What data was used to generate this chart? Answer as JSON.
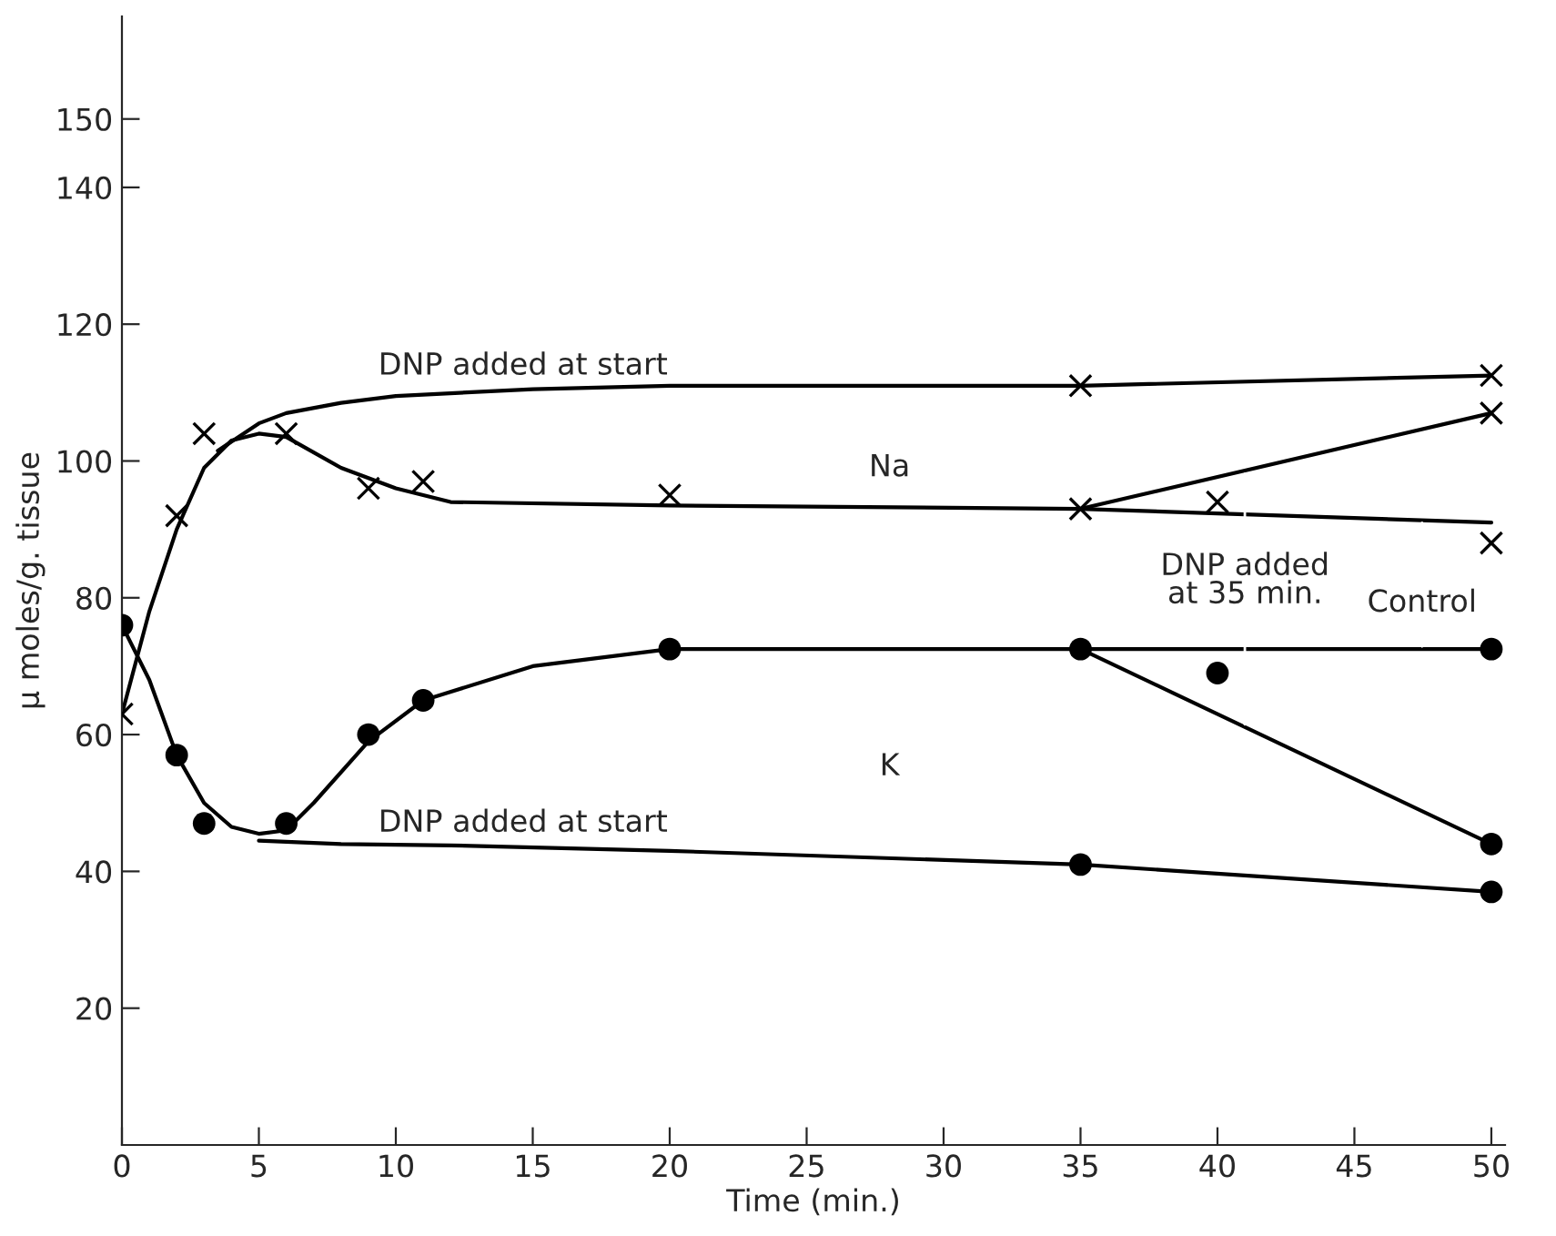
{
  "chart_data": {
    "type": "line",
    "xlabel": "Time (min.)",
    "ylabel": "μ moles/g. tissue",
    "xlim": [
      0,
      50.5
    ],
    "xticks": [
      0,
      5,
      10,
      15,
      20,
      25,
      30,
      35,
      40,
      45,
      50
    ],
    "ylim": [
      0,
      165
    ],
    "yticks": [
      20,
      40,
      60,
      80,
      100,
      120,
      140,
      150
    ],
    "grid": false,
    "legend": false,
    "series": [
      {
        "color": "#000000",
        "line_style": "solid",
        "marker": "none",
        "x": [
          0,
          1,
          2,
          3,
          4,
          5,
          6,
          8,
          10,
          12,
          20,
          35,
          50
        ],
        "values": [
          63,
          78,
          90,
          99,
          103,
          104,
          103.5,
          99,
          96,
          94,
          93.5,
          93,
          91
        ]
      },
      {
        "color": "#000000",
        "line_style": "solid",
        "marker": "none",
        "x": [
          3.5,
          5,
          6,
          8,
          10,
          15,
          20,
          35,
          50
        ],
        "values": [
          101.5,
          105.5,
          107,
          108.5,
          109.5,
          110.5,
          111,
          111,
          112.5
        ]
      },
      {
        "color": "#000000",
        "line_style": "solid",
        "marker": "none",
        "x": [
          35,
          50
        ],
        "values": [
          93,
          107
        ]
      },
      {
        "color": "#000000",
        "line_style": "solid",
        "marker": "none",
        "x": [
          0,
          1,
          2,
          3,
          4,
          5,
          6,
          7,
          9,
          11,
          15,
          20,
          35,
          50
        ],
        "values": [
          76,
          68,
          57,
          50,
          46.5,
          45.5,
          46,
          50,
          59,
          65,
          70,
          72.5,
          72.5,
          72.5
        ]
      },
      {
        "color": "#000000",
        "line_style": "solid",
        "marker": "none",
        "x": [
          5,
          8,
          12,
          20,
          35,
          50
        ],
        "values": [
          44.5,
          44,
          43.8,
          43,
          41,
          37
        ]
      },
      {
        "color": "#000000",
        "line_style": "solid",
        "marker": "none",
        "x": [
          35,
          50
        ],
        "values": [
          72.5,
          44
        ]
      },
      {
        "type": "scatter",
        "color": "#000000",
        "marker": "cross",
        "x": [
          0,
          2,
          3,
          6,
          9,
          11,
          20,
          35,
          35,
          40,
          50,
          50,
          50
        ],
        "values": [
          63,
          92,
          104,
          104,
          96,
          97,
          95,
          93,
          111,
          94,
          88,
          107,
          112.5
        ]
      },
      {
        "type": "scatter",
        "color": "#000000",
        "marker": "circle",
        "x": [
          0,
          2,
          3,
          6,
          9,
          11,
          20,
          35,
          35,
          40,
          50,
          50,
          50
        ],
        "values": [
          76,
          57,
          47,
          47,
          60,
          65,
          72.5,
          72.5,
          41,
          69,
          72.5,
          44,
          37
        ]
      }
    ],
    "annotations": [
      "DNP added at start",
      "DNP added at start",
      "Na",
      "K",
      {
        "text": "DNP added\nat 35 min.",
        "x": 41,
        "y": 98.5
      },
      "Control"
    ]
  }
}
